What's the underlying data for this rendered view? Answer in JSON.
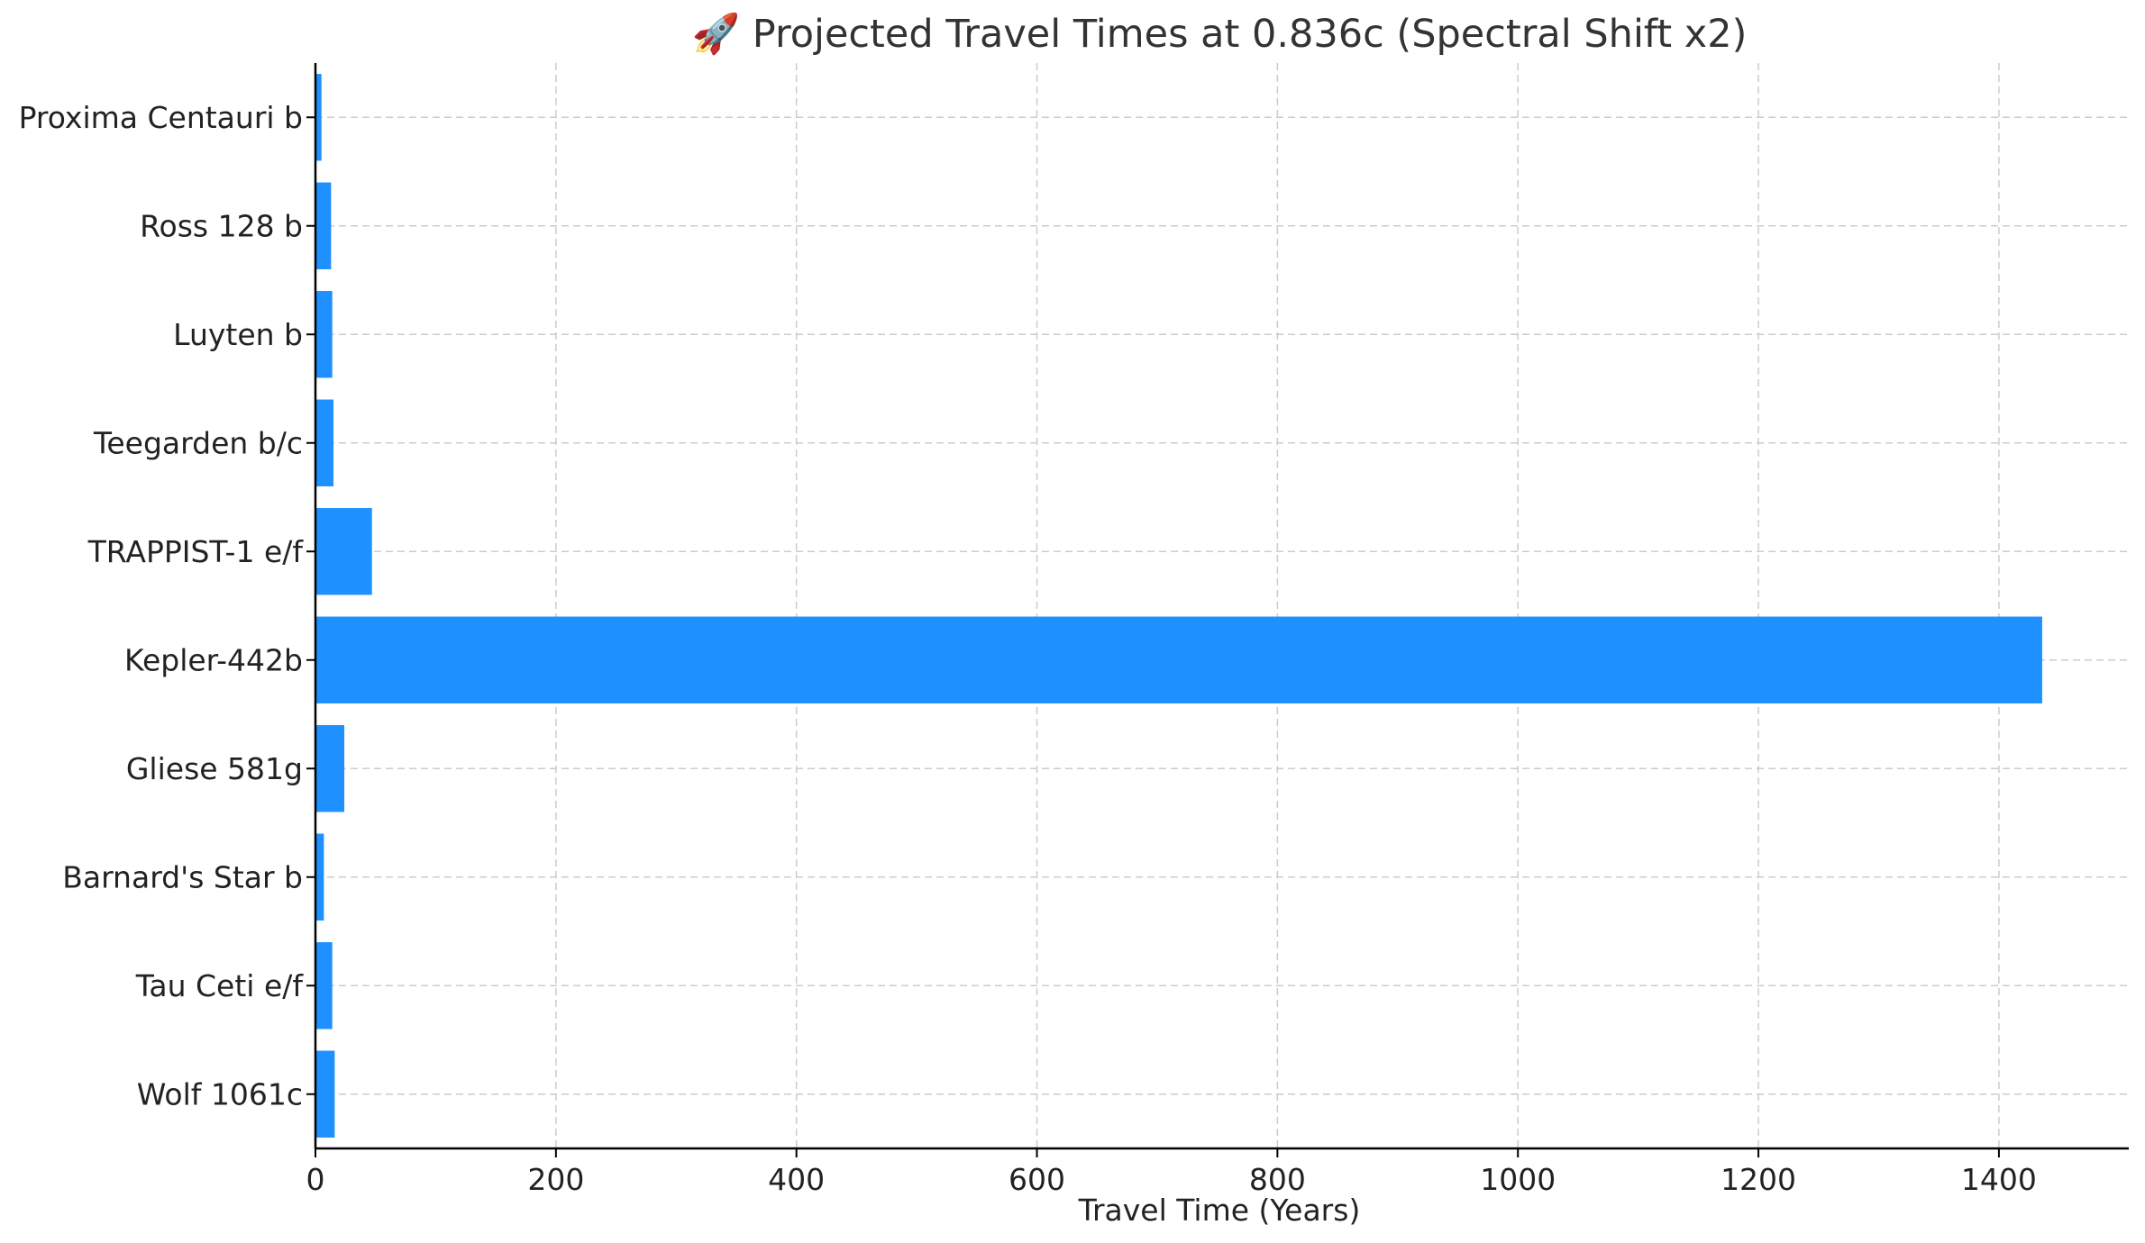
{
  "chart_data": {
    "type": "bar",
    "orientation": "horizontal",
    "title": "🚀 Projected Travel Times at 0.836c (Spectral Shift x2)",
    "xlabel": "Travel Time (Years)",
    "ylabel": "",
    "categories": [
      "Proxima Centauri b",
      "Ross 128 b",
      "Luyten b",
      "Teegarden b/c",
      "TRAPPIST-1 e/f",
      "Kepler-442b",
      "Gliese 581g",
      "Barnard's Star b",
      "Tau Ceti e/f",
      "Wolf 1061c"
    ],
    "values": [
      5,
      13,
      14,
      15,
      47,
      1436,
      24,
      7,
      14,
      16
    ],
    "xlim": [
      0,
      1508
    ],
    "xticks": [
      0,
      200,
      400,
      600,
      800,
      1000,
      1200,
      1400
    ],
    "grid": true,
    "bar_color": "#1e90ff"
  }
}
